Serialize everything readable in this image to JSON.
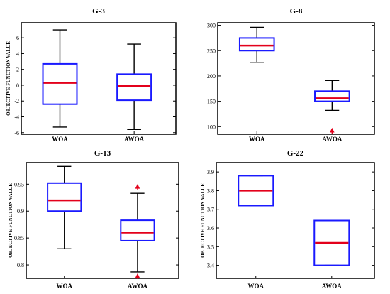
{
  "chart_data": [
    {
      "type": "box",
      "title": "G-3",
      "ylabel": "OBJECTIVE FUNCTION VALUE",
      "categories": [
        "WOA",
        "AWOA"
      ],
      "ylim": [
        -6.2,
        7.9
      ],
      "yticks": [
        -6,
        -4,
        -2,
        0,
        2,
        4,
        6
      ],
      "ytick_labels": [
        "-6",
        "-4",
        "-2",
        "0",
        "2",
        "4",
        "6"
      ],
      "boxes": [
        {
          "whisker_low": -5.3,
          "q1": -2.4,
          "median": 0.3,
          "q3": 2.7,
          "whisker_high": 7.0,
          "outliers": []
        },
        {
          "whisker_low": -5.6,
          "q1": -1.9,
          "median": -0.1,
          "q3": 1.4,
          "whisker_high": 5.2,
          "outliers": []
        }
      ]
    },
    {
      "type": "box",
      "title": "G-8",
      "ylabel": "",
      "categories": [
        "WOA",
        "AWOA"
      ],
      "ylim": [
        85,
        305
      ],
      "yticks": [
        100,
        150,
        200,
        250,
        300
      ],
      "ytick_labels": [
        "100",
        "150",
        "200",
        "250",
        "300"
      ],
      "boxes": [
        {
          "whisker_low": 227,
          "q1": 250,
          "median": 260,
          "q3": 275,
          "whisker_high": 296,
          "outliers": []
        },
        {
          "whisker_low": 132,
          "q1": 150,
          "median": 156,
          "q3": 170,
          "whisker_high": 191,
          "outliers": [
            92
          ]
        }
      ]
    },
    {
      "type": "box",
      "title": "G-13",
      "ylabel": "OBJECTIVE FUNCTION VALUE",
      "categories": [
        "WOA",
        "AWOA"
      ],
      "ylim": [
        0.775,
        0.99
      ],
      "yticks": [
        0.8,
        0.85,
        0.9,
        0.95
      ],
      "ytick_labels": [
        "0.8",
        "0.85",
        "0.9",
        "0.95"
      ],
      "boxes": [
        {
          "whisker_low": 0.83,
          "q1": 0.9,
          "median": 0.92,
          "q3": 0.952,
          "whisker_high": 0.983,
          "outliers": []
        },
        {
          "whisker_low": 0.787,
          "q1": 0.845,
          "median": 0.86,
          "q3": 0.883,
          "whisker_high": 0.933,
          "outliers": [
            0.778,
            0.945
          ]
        }
      ]
    },
    {
      "type": "box",
      "title": "G-22",
      "ylabel": "OBJECTIVE FUNCTION VALUE",
      "categories": [
        "WOA",
        "AWOA"
      ],
      "ylim": [
        3.33,
        3.95
      ],
      "yticks": [
        3.4,
        3.5,
        3.6,
        3.7,
        3.8,
        3.9
      ],
      "ytick_labels": [
        "3.4",
        "3.5",
        "3.6",
        "3.7",
        "3.8",
        "3.9"
      ],
      "boxes": [
        {
          "whisker_low": 3.72,
          "q1": 3.72,
          "median": 3.8,
          "q3": 3.88,
          "whisker_high": 3.88,
          "outliers": []
        },
        {
          "whisker_low": 3.4,
          "q1": 3.4,
          "median": 3.52,
          "q3": 3.64,
          "whisker_high": 3.64,
          "outliers": []
        }
      ]
    }
  ],
  "colors": {
    "box": "#1a1aff",
    "median": "#e3001b",
    "whisker": "#000000",
    "outlier": "#e3001b",
    "axes": "#000000"
  }
}
